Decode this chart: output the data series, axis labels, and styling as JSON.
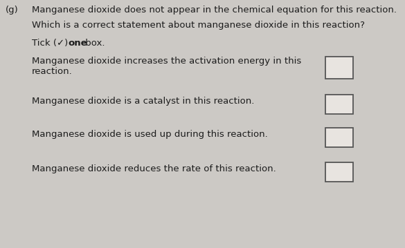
{
  "background_color": "#ccc9c5",
  "question_label": "(g)",
  "line1": "Manganese dioxide does not appear in the chemical equation for this reaction.",
  "line2": "Which is a correct statement about manganese dioxide in this reaction?",
  "tick_part1": "Tick (✓) ",
  "tick_bold": "one",
  "tick_part2": " box.",
  "options": [
    [
      "Manganese dioxide increases the activation energy in this",
      "reaction."
    ],
    [
      "Manganese dioxide is a catalyst in this reaction.",
      ""
    ],
    [
      "Manganese dioxide is used up during this reaction.",
      ""
    ],
    [
      "Manganese dioxide reduces the rate of this reaction.",
      ""
    ]
  ],
  "font_size": 9.5,
  "text_color": "#1c1c1c",
  "box_color": "#e8e4e0",
  "box_edge_color": "#555555",
  "figsize": [
    5.85,
    3.59
  ],
  "dpi": 100
}
